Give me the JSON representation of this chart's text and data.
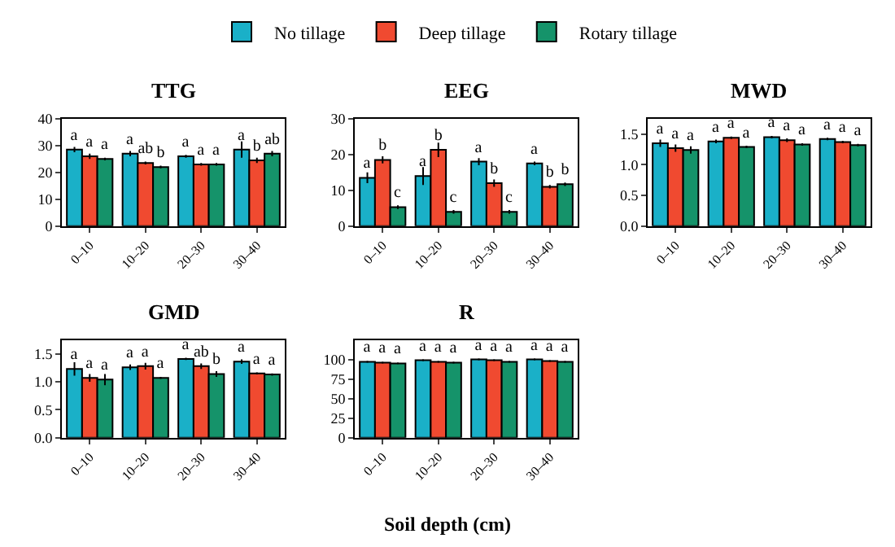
{
  "chart_data": [
    {
      "type": "bar",
      "title": "TTG",
      "categories": [
        "0–10",
        "10–20",
        "20–30",
        "30–40"
      ],
      "ylim": [
        0,
        40
      ],
      "yticks": [
        0,
        10,
        20,
        30,
        40
      ],
      "legend": "top",
      "grid": false,
      "series": [
        {
          "name": "No tillage",
          "color": "#1ab0c8",
          "values": [
            28.5,
            27,
            26,
            28.5
          ],
          "errors": [
            1,
            1,
            0.5,
            3
          ],
          "value_labels": [
            "a",
            "a",
            "a",
            "a"
          ]
        },
        {
          "name": "Deep tillage",
          "color": "#f04a30",
          "values": [
            26,
            23.5,
            23,
            24.5
          ],
          "errors": [
            1,
            0.5,
            0.5,
            1
          ],
          "value_labels": [
            "a",
            "ab",
            "a",
            "b"
          ]
        },
        {
          "name": "Rotary tillage",
          "color": "#15936a",
          "values": [
            25,
            22,
            23,
            27
          ],
          "errors": [
            0.5,
            0.5,
            0.5,
            1
          ],
          "value_labels": [
            "a",
            "b",
            "a",
            "ab"
          ]
        }
      ]
    },
    {
      "type": "bar",
      "title": "EEG",
      "categories": [
        "0–10",
        "10–20",
        "20–30",
        "30–40"
      ],
      "ylim": [
        0,
        30
      ],
      "yticks": [
        0,
        10,
        20,
        30
      ],
      "grid": false,
      "series": [
        {
          "color": "#1ab0c8",
          "values": [
            13.5,
            14,
            18,
            17.5
          ],
          "errors": [
            1.5,
            2.5,
            1,
            0.5
          ],
          "value_labels": [
            "a",
            "a",
            "a",
            "a"
          ]
        },
        {
          "color": "#f04a30",
          "values": [
            18.5,
            21.3,
            12,
            11
          ],
          "errors": [
            1,
            2,
            1,
            0.5
          ],
          "value_labels": [
            "b",
            "b",
            "b",
            "b"
          ]
        },
        {
          "color": "#15936a",
          "values": [
            5.3,
            4,
            4,
            11.7
          ],
          "errors": [
            0.5,
            0.5,
            0.5,
            0.5
          ],
          "value_labels": [
            "c",
            "c",
            "c",
            "b"
          ]
        }
      ]
    },
    {
      "type": "bar",
      "title": "MWD",
      "categories": [
        "0–10",
        "10–20",
        "20–30",
        "30–40"
      ],
      "ylim": [
        0,
        1.75
      ],
      "yticks": [
        {
          "value": 0,
          "label": "0.0"
        },
        {
          "value": 0.5,
          "label": "0.5"
        },
        {
          "value": 1,
          "label": "1.0"
        },
        {
          "value": 1.5,
          "label": "1.5"
        }
      ],
      "grid": false,
      "series": [
        {
          "color": "#1ab0c8",
          "values": [
            1.35,
            1.38,
            1.45,
            1.42
          ],
          "errors": [
            0.06,
            0.03,
            0.02,
            0.02
          ],
          "value_labels": [
            "a",
            "a",
            "a",
            "a"
          ]
        },
        {
          "color": "#f04a30",
          "values": [
            1.27,
            1.44,
            1.4,
            1.37
          ],
          "errors": [
            0.06,
            0.02,
            0.03,
            0.02
          ],
          "value_labels": [
            "a",
            "a",
            "a",
            "a"
          ]
        },
        {
          "color": "#15936a",
          "values": [
            1.24,
            1.29,
            1.33,
            1.32
          ],
          "errors": [
            0.06,
            0.02,
            0.02,
            0.02
          ],
          "value_labels": [
            "a",
            "a",
            "a",
            "a"
          ]
        }
      ]
    },
    {
      "type": "bar",
      "title": "GMD",
      "categories": [
        "0–10",
        "10–20",
        "20–30",
        "30–40"
      ],
      "ylim": [
        0,
        1.75
      ],
      "yticks": [
        {
          "value": 0,
          "label": "0.0"
        },
        {
          "value": 0.5,
          "label": "0.5"
        },
        {
          "value": 1,
          "label": "1.0"
        },
        {
          "value": 1.5,
          "label": "1.5"
        }
      ],
      "grid": false,
      "series": [
        {
          "color": "#1ab0c8",
          "values": [
            1.23,
            1.26,
            1.41,
            1.36
          ],
          "errors": [
            0.12,
            0.05,
            0.02,
            0.04
          ],
          "value_labels": [
            "a",
            "a",
            "a",
            "a"
          ]
        },
        {
          "color": "#f04a30",
          "values": [
            1.07,
            1.28,
            1.28,
            1.15
          ],
          "errors": [
            0.07,
            0.06,
            0.05,
            0.02
          ],
          "value_labels": [
            "a",
            "a",
            "ab",
            "a"
          ]
        },
        {
          "color": "#15936a",
          "values": [
            1.04,
            1.07,
            1.14,
            1.13
          ],
          "errors": [
            0.1,
            0.02,
            0.05,
            0.02
          ],
          "value_labels": [
            "a",
            "a",
            "b",
            "a"
          ]
        }
      ]
    },
    {
      "type": "bar",
      "title": "R",
      "xlabel": "Soil depth (cm)",
      "categories": [
        "0–10",
        "10–20",
        "20–30",
        "30–40"
      ],
      "ylim": [
        0,
        125
      ],
      "yticks": [
        0,
        25,
        50,
        75,
        100
      ],
      "grid": false,
      "series": [
        {
          "color": "#1ab0c8",
          "values": [
            97,
            99,
            100,
            100
          ],
          "errors": [
            1,
            1,
            1,
            1
          ],
          "value_labels": [
            "a",
            "a",
            "a",
            "a"
          ]
        },
        {
          "color": "#f04a30",
          "values": [
            96,
            97,
            99,
            98
          ],
          "errors": [
            1,
            1,
            1,
            1
          ],
          "value_labels": [
            "a",
            "a",
            "a",
            "a"
          ]
        },
        {
          "color": "#15936a",
          "values": [
            95,
            96,
            97,
            97
          ],
          "errors": [
            1,
            1,
            1,
            1
          ],
          "value_labels": [
            "a",
            "a",
            "a",
            "a"
          ]
        }
      ]
    }
  ]
}
